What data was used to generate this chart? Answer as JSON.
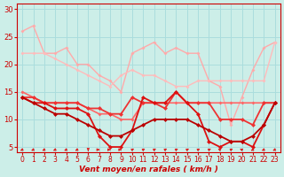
{
  "xlabel": "Vent moyen/en rafales ( km/h )",
  "bg_color": "#cceee8",
  "grid_color": "#aadddd",
  "xlim": [
    -0.5,
    23.5
  ],
  "ylim": [
    4,
    31
  ],
  "yticks": [
    5,
    10,
    15,
    20,
    25,
    30
  ],
  "xticks": [
    0,
    1,
    2,
    3,
    4,
    5,
    6,
    7,
    8,
    9,
    10,
    11,
    12,
    13,
    14,
    15,
    16,
    17,
    18,
    19,
    20,
    21,
    22,
    23
  ],
  "lines": [
    {
      "x": [
        0,
        1,
        2,
        3,
        4,
        5,
        6,
        7,
        8,
        9,
        10,
        11,
        12,
        13,
        14,
        15,
        16,
        17,
        18,
        19,
        20,
        21,
        22,
        23
      ],
      "y": [
        26,
        27,
        22,
        22,
        23,
        20,
        20,
        18,
        17,
        15,
        22,
        23,
        24,
        22,
        23,
        22,
        22,
        17,
        16,
        9,
        14,
        19,
        23,
        24
      ],
      "color": "#ffaaaa",
      "lw": 1.0,
      "marker": "D",
      "ms": 2.0,
      "zorder": 2
    },
    {
      "x": [
        0,
        1,
        2,
        3,
        4,
        5,
        6,
        7,
        8,
        9,
        10,
        11,
        12,
        13,
        14,
        15,
        16,
        17,
        18,
        19,
        20,
        21,
        22,
        23
      ],
      "y": [
        22,
        22,
        22,
        21,
        20,
        19,
        18,
        17,
        16,
        18,
        19,
        18,
        18,
        17,
        16,
        16,
        17,
        17,
        17,
        17,
        17,
        17,
        17,
        24
      ],
      "color": "#ffbbbb",
      "lw": 1.0,
      "marker": "D",
      "ms": 2.0,
      "zorder": 2
    },
    {
      "x": [
        0,
        1,
        2,
        3,
        4,
        5,
        6,
        7,
        8,
        9,
        10,
        11,
        12,
        13,
        14,
        15,
        16,
        17,
        18,
        19,
        20,
        21,
        22,
        23
      ],
      "y": [
        15,
        14,
        13,
        13,
        13,
        13,
        12,
        11,
        11,
        10,
        10,
        13,
        13,
        13,
        13,
        13,
        13,
        13,
        13,
        13,
        13,
        13,
        13,
        13
      ],
      "color": "#ff6666",
      "lw": 1.2,
      "marker": "D",
      "ms": 2.0,
      "zorder": 3
    },
    {
      "x": [
        0,
        1,
        2,
        3,
        4,
        5,
        6,
        7,
        8,
        9,
        10,
        11,
        12,
        13,
        14,
        15,
        16,
        17,
        18,
        19,
        20,
        21,
        22,
        23
      ],
      "y": [
        14,
        14,
        13,
        13,
        13,
        13,
        12,
        12,
        11,
        11,
        14,
        13,
        13,
        12,
        15,
        13,
        13,
        13,
        10,
        10,
        10,
        9,
        13,
        13
      ],
      "color": "#ee3333",
      "lw": 1.3,
      "marker": "D",
      "ms": 2.5,
      "zorder": 3
    },
    {
      "x": [
        0,
        1,
        2,
        3,
        4,
        5,
        6,
        7,
        8,
        9,
        10,
        11,
        12,
        13,
        14,
        15,
        16,
        17,
        18,
        19,
        20,
        21,
        22,
        23
      ],
      "y": [
        14,
        13,
        13,
        12,
        12,
        12,
        11,
        7,
        5,
        5,
        8,
        14,
        13,
        13,
        15,
        13,
        11,
        6,
        5,
        6,
        6,
        5,
        9,
        13
      ],
      "color": "#dd1111",
      "lw": 1.3,
      "marker": "D",
      "ms": 2.5,
      "zorder": 4
    },
    {
      "x": [
        0,
        1,
        2,
        3,
        4,
        5,
        6,
        7,
        8,
        9,
        10,
        11,
        12,
        13,
        14,
        15,
        16,
        17,
        18,
        19,
        20,
        21,
        22,
        23
      ],
      "y": [
        14,
        13,
        12,
        11,
        11,
        10,
        9,
        8,
        7,
        7,
        8,
        9,
        10,
        10,
        10,
        10,
        9,
        8,
        7,
        6,
        6,
        7,
        9,
        13
      ],
      "color": "#bb0000",
      "lw": 1.3,
      "marker": "D",
      "ms": 2.5,
      "zorder": 4
    }
  ],
  "arrows": {
    "x": [
      0,
      1,
      2,
      3,
      4,
      5,
      6,
      7,
      8,
      9,
      10,
      11,
      12,
      13,
      14,
      15,
      16,
      17,
      18,
      19,
      20,
      21,
      22,
      23
    ],
    "angles": [
      225,
      225,
      225,
      225,
      225,
      225,
      270,
      0,
      0,
      0,
      45,
      45,
      45,
      45,
      45,
      45,
      45,
      45,
      135,
      45,
      135,
      225,
      225,
      225
    ],
    "color": "#dd2222",
    "y": 4.5
  }
}
